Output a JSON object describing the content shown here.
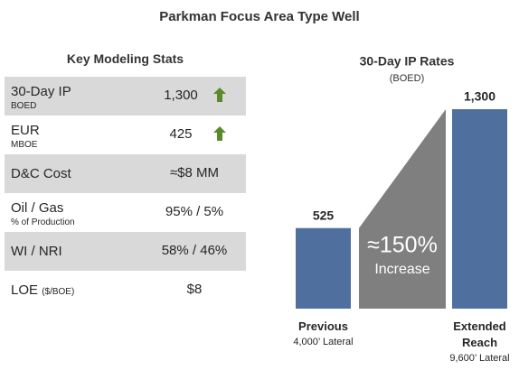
{
  "header": {
    "title": "Parkman Focus Area Type Well"
  },
  "table": {
    "title": "Key Modeling Stats",
    "rows": [
      {
        "label": "30-Day IP",
        "sublabel": "BOED",
        "value": "1,300"
      },
      {
        "label": "EUR",
        "sublabel": "MBOE",
        "value": "425"
      },
      {
        "label": "D&C Cost",
        "value": "≈$8 MM"
      },
      {
        "label": "Oil / Gas",
        "sublabel": "% of Production",
        "value": "95% / 5%"
      },
      {
        "label": "WI / NRI",
        "value": "58% / 46%"
      },
      {
        "label": "LOE",
        "unit": "($/BOE)",
        "value": "$8"
      }
    ]
  },
  "chart_data": {
    "type": "bar",
    "title": "30-Day IP Rates",
    "subtitle": "(BOED)",
    "categories": [
      "Previous",
      "Extended Reach"
    ],
    "sublabels": [
      "4,000’ Lateral",
      "9,600’ Lateral"
    ],
    "values": [
      525,
      1300
    ],
    "value_labels": [
      "525",
      "1,300"
    ],
    "color": "#4f6f9e",
    "annotation": {
      "value": "≈150%",
      "label": "Increase",
      "color": "#7f7f7f"
    }
  }
}
